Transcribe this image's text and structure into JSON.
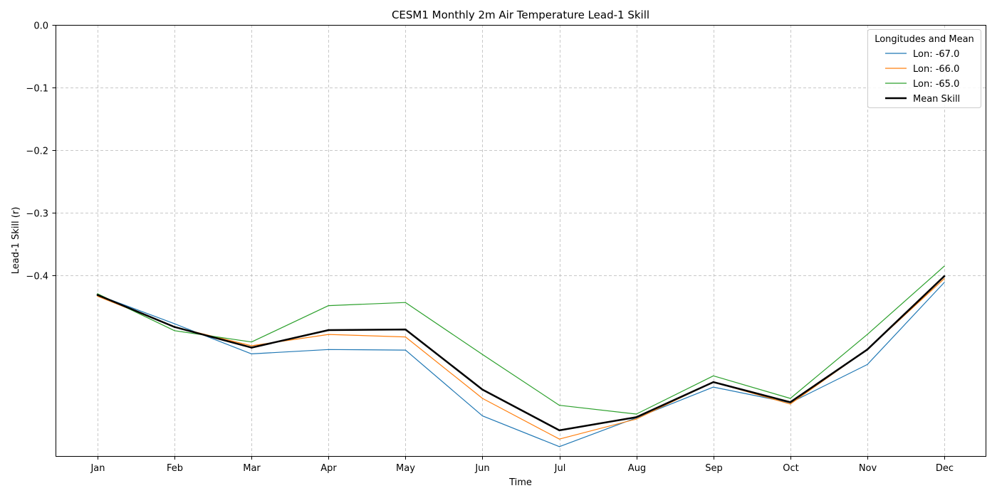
{
  "chart_data": {
    "type": "line",
    "title": "CESM1 Monthly 2m Air Temperature Lead-1 Skill",
    "xlabel": "Time",
    "ylabel": "Lead-1 Skill (r)",
    "categories": [
      "Jan",
      "Feb",
      "Mar",
      "Apr",
      "May",
      "Jun",
      "Jul",
      "Aug",
      "Sep",
      "Oct",
      "Nov",
      "Dec"
    ],
    "ylim": [
      -0.688,
      0.0
    ],
    "yticks": [
      0.0,
      -0.1,
      -0.2,
      -0.3,
      -0.4
    ],
    "ytick_labels": [
      "0.0",
      "−0.1",
      "−0.2",
      "−0.3",
      "−0.4"
    ],
    "grid": true,
    "legend": {
      "title": "Longitudes and Mean",
      "placement": "top-right"
    },
    "series": [
      {
        "name": "Lon: -67.0",
        "color": "#1f77b4",
        "width": "thin",
        "values": [
          -0.431,
          -0.477,
          -0.525,
          -0.518,
          -0.519,
          -0.624,
          -0.673,
          -0.627,
          -0.578,
          -0.603,
          -0.542,
          -0.411
        ]
      },
      {
        "name": "Lon: -66.0",
        "color": "#ff7f0e",
        "width": "thin",
        "values": [
          -0.433,
          -0.482,
          -0.512,
          -0.494,
          -0.498,
          -0.596,
          -0.661,
          -0.629,
          -0.57,
          -0.605,
          -0.518,
          -0.405
        ]
      },
      {
        "name": "Lon: -65.0",
        "color": "#2ca02c",
        "width": "thin",
        "values": [
          -0.429,
          -0.488,
          -0.506,
          -0.448,
          -0.443,
          -0.526,
          -0.607,
          -0.621,
          -0.56,
          -0.596,
          -0.494,
          -0.385
        ]
      },
      {
        "name": "Mean Skill",
        "color": "#000000",
        "width": "thick",
        "values": [
          -0.431,
          -0.482,
          -0.515,
          -0.487,
          -0.486,
          -0.582,
          -0.647,
          -0.626,
          -0.57,
          -0.602,
          -0.518,
          -0.401
        ]
      }
    ]
  }
}
